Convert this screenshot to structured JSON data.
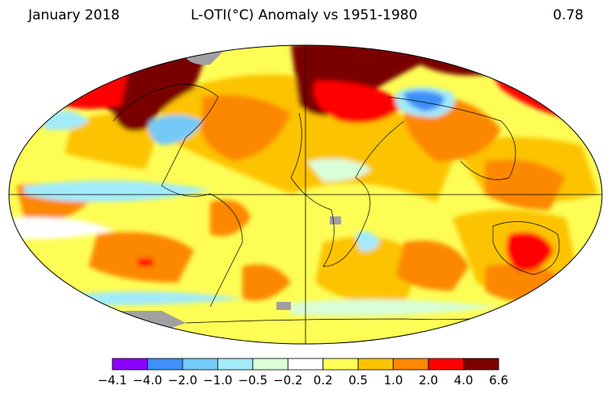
{
  "header": {
    "month": "January 2018",
    "title": "L-OTI(°C) Anomaly vs 1951-1980",
    "global_mean": "0.78"
  },
  "map": {
    "projection": "Robinson",
    "no_data_color": "#a0a0a0",
    "regions": [
      {
        "name": "arctic-canada",
        "level": "dark-red"
      },
      {
        "name": "siberia",
        "level": "dark-red"
      },
      {
        "name": "central-asia",
        "level": "light-blue"
      },
      {
        "name": "eastern-north-america",
        "level": "light-blue"
      },
      {
        "name": "eastern-australia",
        "level": "red"
      },
      {
        "name": "southern-ocean-antarctica",
        "level": "no-data"
      }
    ]
  },
  "legend": {
    "colors": [
      "#8a00ff",
      "#3e8ff7",
      "#74c9f7",
      "#a2ebfb",
      "#d8ffd8",
      "#ffffff",
      "#fdfd55",
      "#fcc300",
      "#fc8700",
      "#ff0000",
      "#7a0000"
    ],
    "ticks": [
      "−4.1",
      "−4.0",
      "−2.0",
      "−1.0",
      "−0.5",
      "−0.2",
      "0.2",
      "0.5",
      "1.0",
      "2.0",
      "4.0",
      "6.6"
    ]
  }
}
